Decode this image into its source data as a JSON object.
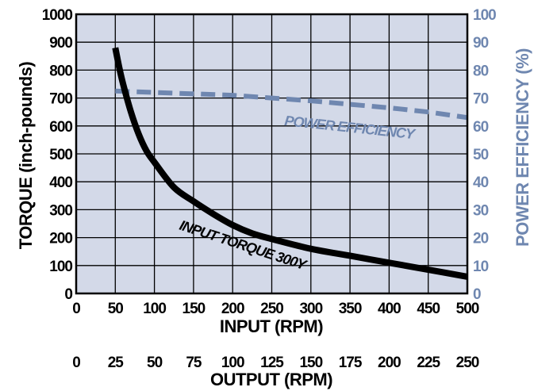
{
  "chart_data": {
    "type": "line",
    "xlabel": "INPUT (RPM)",
    "x2label": "OUTPUT (RPM)",
    "ylabel": "TORQUE (inch-pounds)",
    "y2label": "POWER EFFICIENCY (%)",
    "xlim": [
      0,
      500
    ],
    "ylim": [
      0,
      1000
    ],
    "y2lim": [
      0,
      100
    ],
    "x_ticks": [
      "0",
      "50",
      "100",
      "150",
      "200",
      "250",
      "300",
      "350",
      "400",
      "450",
      "500"
    ],
    "x2_ticks": [
      "0",
      "25",
      "50",
      "75",
      "100",
      "125",
      "150",
      "175",
      "200",
      "225",
      "250"
    ],
    "y_ticks": [
      "0",
      "100",
      "200",
      "300",
      "400",
      "500",
      "600",
      "700",
      "800",
      "900",
      "1000"
    ],
    "y2_ticks": [
      "0",
      "10",
      "20",
      "30",
      "40",
      "50",
      "60",
      "70",
      "80",
      "90",
      "100"
    ],
    "grid": true,
    "colors": {
      "plot_bg": "#d3d9e8",
      "torque": "#000000",
      "efficiency": "#6f87b0",
      "right_axis": "#6f87b0"
    },
    "series": [
      {
        "name": "INPUT TORQUE 300Y",
        "axis": "left",
        "x": [
          50,
          55,
          60,
          70,
          80,
          90,
          100,
          125,
          150,
          175,
          200,
          225,
          250,
          300,
          350,
          400,
          450,
          500
        ],
        "y": [
          880,
          810,
          750,
          650,
          570,
          510,
          470,
          380,
          330,
          285,
          245,
          215,
          195,
          160,
          135,
          110,
          85,
          60
        ]
      },
      {
        "name": "POWER EFFICIENCY",
        "axis": "right",
        "x": [
          50,
          100,
          200,
          300,
          400,
          450,
          500
        ],
        "y": [
          72.5,
          72,
          71,
          69,
          66.5,
          65,
          63
        ]
      }
    ]
  }
}
